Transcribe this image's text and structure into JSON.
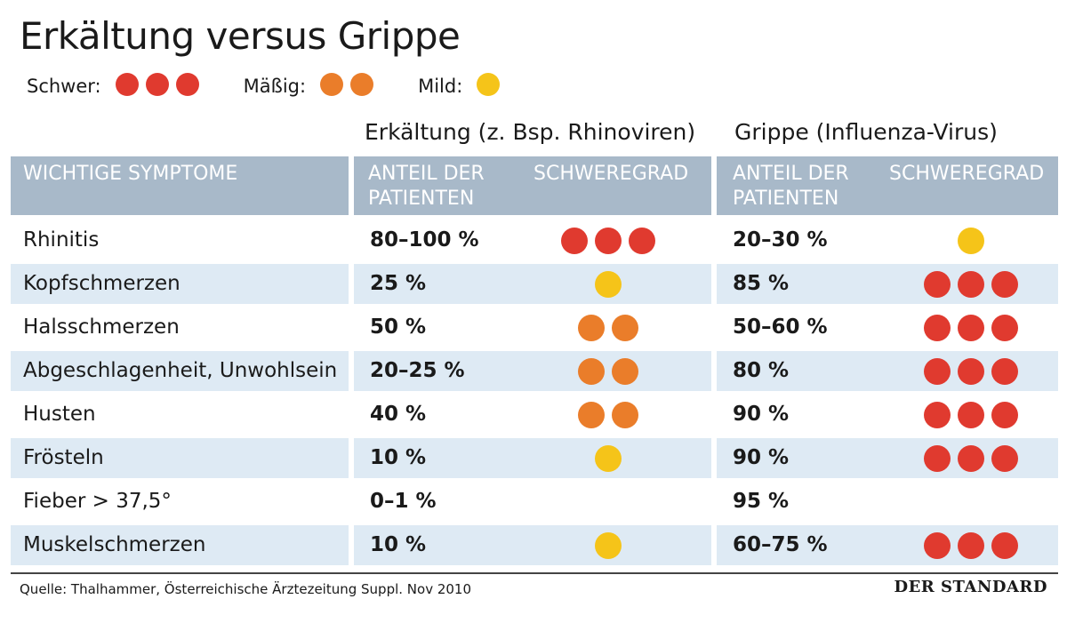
{
  "title": "Erkältung versus Grippe",
  "legend": [
    {
      "label": "Schwer:",
      "count": 3,
      "color": "#e03a2f"
    },
    {
      "label": "Mäßig:",
      "count": 2,
      "color": "#ea7d2a"
    },
    {
      "label": "Mild:",
      "count": 1,
      "color": "#f5c419"
    }
  ],
  "groups": {
    "cold": "Erkältung (z. Bsp. Rhinoviren)",
    "flu": "Grippe (Influenza-Virus)"
  },
  "headers": {
    "symptoms": "WICHTIGE SYMPTOME",
    "share_line1": "ANTEIL DER",
    "share_line2": "PATIENTEN",
    "severity": "SCHWEREGRAD"
  },
  "severity_colors": {
    "1": "#f5c419",
    "2": "#ea7d2a",
    "3": "#e03a2f"
  },
  "rows": [
    {
      "symptom": "Rhinitis",
      "cold_pct": "80–100 %",
      "cold_sev": 3,
      "flu_pct": "20–30 %",
      "flu_sev": 1
    },
    {
      "symptom": "Kopfschmerzen",
      "cold_pct": "25 %",
      "cold_sev": 1,
      "flu_pct": "85 %",
      "flu_sev": 3
    },
    {
      "symptom": "Halsschmerzen",
      "cold_pct": "50 %",
      "cold_sev": 2,
      "flu_pct": "50–60 %",
      "flu_sev": 3
    },
    {
      "symptom": "Abgeschlagenheit, Unwohlsein",
      "cold_pct": "20–25 %",
      "cold_sev": 2,
      "flu_pct": "80 %",
      "flu_sev": 3
    },
    {
      "symptom": "Husten",
      "cold_pct": "40 %",
      "cold_sev": 2,
      "flu_pct": "90 %",
      "flu_sev": 3
    },
    {
      "symptom": "Frösteln",
      "cold_pct": "10 %",
      "cold_sev": 1,
      "flu_pct": "90 %",
      "flu_sev": 3
    },
    {
      "symptom": "Fieber > 37,5°",
      "cold_pct": "0–1 %",
      "cold_sev": 0,
      "flu_pct": "95 %",
      "flu_sev": 0
    },
    {
      "symptom": "Muskelschmerzen",
      "cold_pct": "10 %",
      "cold_sev": 1,
      "flu_pct": "60–75 %",
      "flu_sev": 3
    }
  ],
  "source": "Quelle: Thalhammer, Österreichische Ärztezeitung Suppl. Nov 2010",
  "brand": "DER STANDARD"
}
